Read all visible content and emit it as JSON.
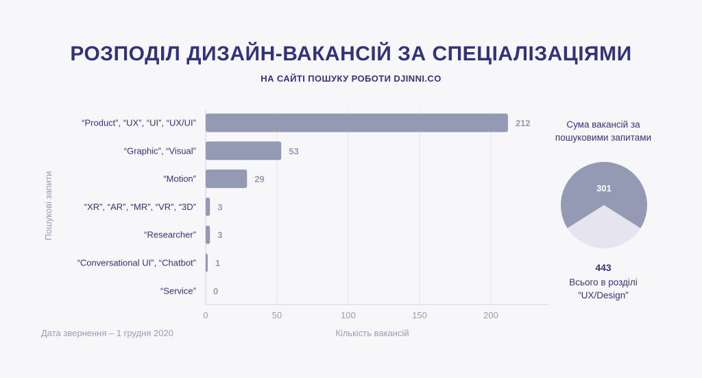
{
  "header": {
    "title": "РОЗПОДІЛ ДИЗАЙН-ВАКАНСІЙ ЗА СПЕЦІАЛІЗАЦІЯМИ",
    "subtitle": "НА САЙТІ ПОШУКУ РОБОТИ DJINNI.CO"
  },
  "footnote": "Дата звернення – 1 грудня 2020",
  "chart_data": [
    {
      "type": "bar",
      "orientation": "horizontal",
      "categories": [
        "“Product”, “UX”, “UI”, “UX/UI”",
        "“Graphic”, “Visual”",
        "“Motion”",
        "“XR”, “AR”, “MR”, “VR”, “3D”",
        "“Researcher”",
        "“Conversational UI”, “Chatbot”",
        "“Service”"
      ],
      "values": [
        212,
        53,
        29,
        3,
        3,
        1,
        0
      ],
      "xlabel": "Кількість вакансій",
      "ylabel": "Пошукові запити",
      "xticks": [
        0,
        50,
        100,
        150,
        200
      ],
      "xlim": [
        0,
        233
      ],
      "grid": true,
      "bar_color": "#9499b4"
    },
    {
      "type": "pie",
      "slices": [
        {
          "label": "301",
          "value": 301,
          "color": "#9499b4"
        },
        {
          "label": "",
          "value": 142,
          "color": "#e6e5ef"
        }
      ],
      "caption_top": "Сума вакансій за пошуковими запитами",
      "total": "443",
      "caption_bottom": "Всього в розділі “UX/Design”"
    }
  ]
}
